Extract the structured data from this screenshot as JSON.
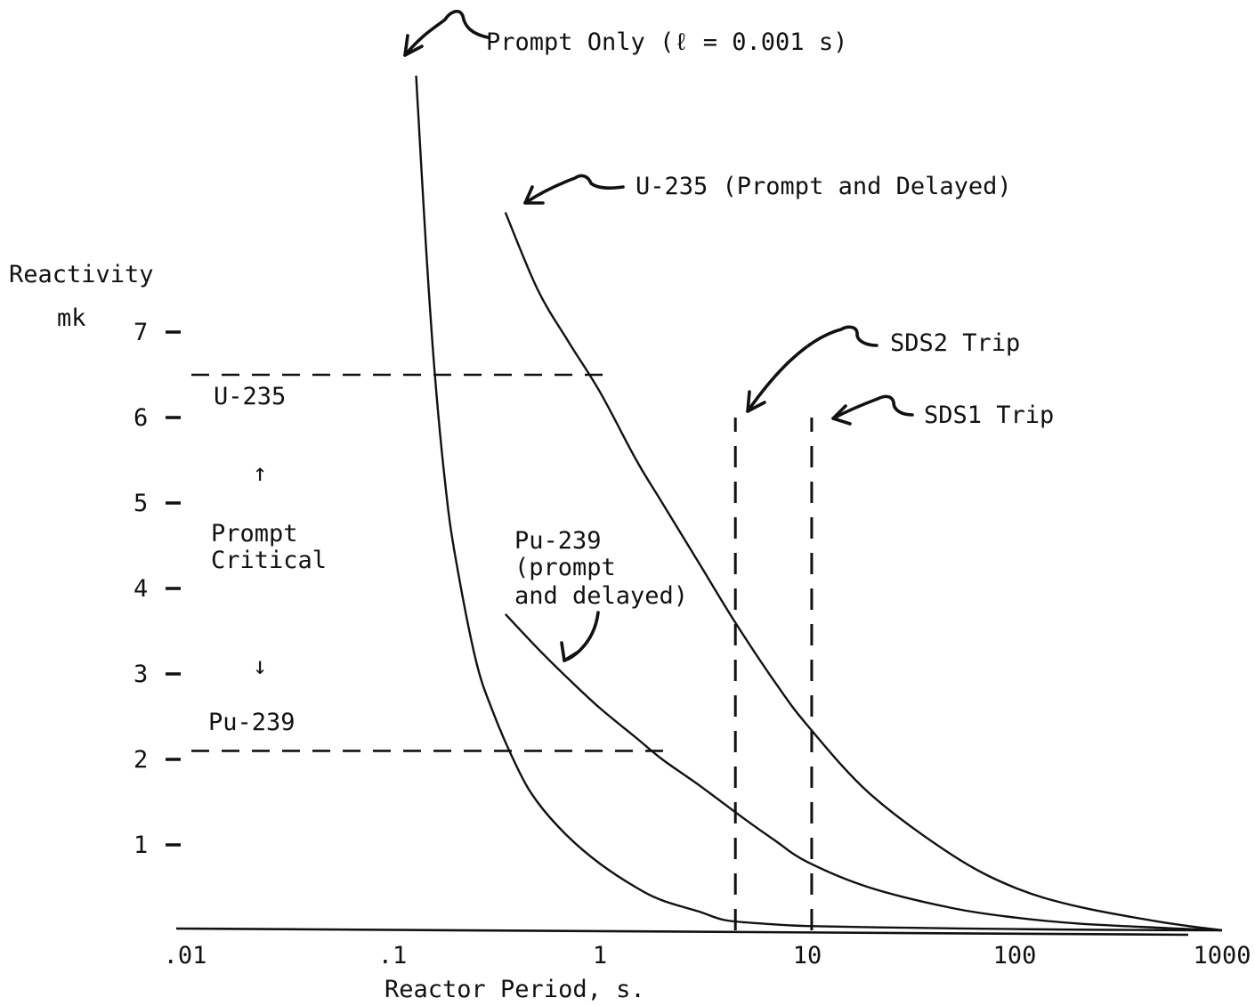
{
  "chart_data": {
    "type": "line",
    "title": "",
    "xlabel": "Reactor Period, s.",
    "ylabel": "Reactivity",
    "yunit": "mk",
    "xscale": "log",
    "xlim": [
      0.01,
      1000
    ],
    "ylim": [
      0,
      7.5
    ],
    "x_ticks": [
      {
        "value": 0.01,
        "label": ".01"
      },
      {
        "value": 0.1,
        "label": ".1"
      },
      {
        "value": 1,
        "label": "1"
      },
      {
        "value": 10,
        "label": "10"
      },
      {
        "value": 100,
        "label": "100"
      },
      {
        "value": 1000,
        "label": "1000"
      }
    ],
    "y_ticks": [
      {
        "value": 1,
        "label": "1"
      },
      {
        "value": 2,
        "label": "2"
      },
      {
        "value": 3,
        "label": "3"
      },
      {
        "value": 4,
        "label": "4"
      },
      {
        "value": 5,
        "label": "5"
      },
      {
        "value": 6,
        "label": "6"
      },
      {
        "value": 7,
        "label": "7"
      }
    ],
    "grid": false,
    "series": [
      {
        "name": "Prompt Only (ℓ = 0.001 s)",
        "x": [
          0.13,
          0.145,
          0.16,
          0.18,
          0.2,
          0.25,
          0.3,
          0.4,
          0.5,
          0.7,
          1,
          1.5,
          2,
          3,
          4,
          6,
          10,
          30,
          100,
          300,
          1000
        ],
        "y": [
          10,
          8.0,
          6.5,
          5.2,
          4.4,
          3.2,
          2.6,
          1.9,
          1.5,
          1.1,
          0.78,
          0.5,
          0.35,
          0.22,
          0.12,
          0.08,
          0.05,
          0.03,
          0.015,
          0.005,
          0.0
        ]
      },
      {
        "name": "U-235 (Prompt and Delayed)",
        "x": [
          0.35,
          0.5,
          0.7,
          1.0,
          1.5,
          2,
          3,
          4.5,
          7,
          10,
          20,
          50,
          100,
          200,
          500,
          1000
        ],
        "y": [
          8.4,
          7.5,
          6.9,
          6.3,
          5.5,
          5.0,
          4.3,
          3.6,
          2.9,
          2.4,
          1.6,
          0.88,
          0.5,
          0.28,
          0.1,
          0.0
        ]
      },
      {
        "name": "Pu-239 (prompt and delayed)",
        "x": [
          0.35,
          0.5,
          0.7,
          1.0,
          1.5,
          2,
          3,
          5,
          7,
          10,
          20,
          50,
          100,
          200,
          500,
          1000
        ],
        "y": [
          3.7,
          3.3,
          2.95,
          2.6,
          2.25,
          2.0,
          1.7,
          1.3,
          1.05,
          0.8,
          0.5,
          0.26,
          0.15,
          0.08,
          0.03,
          0.0
        ]
      }
    ],
    "reference_lines": [
      {
        "label": "U-235",
        "orientation": "horizontal",
        "y": 6.5,
        "x_range": [
          0.01,
          1.1
        ]
      },
      {
        "label": "Pu-239",
        "orientation": "horizontal",
        "y": 2.1,
        "x_range": [
          0.01,
          2.2
        ]
      },
      {
        "label": "SDS2 Trip",
        "orientation": "vertical",
        "x": 4.5,
        "y_range": [
          0,
          6.0
        ]
      },
      {
        "label": "SDS1 Trip",
        "orientation": "vertical",
        "x": 10.5,
        "y_range": [
          0,
          6.0
        ]
      }
    ],
    "annotations": {
      "prompt_critical": "Prompt Critical",
      "arrow_up": "↑",
      "arrow_down": "↓",
      "pu239_lines": [
        "Pu-239",
        "(prompt",
        "and delayed)"
      ]
    }
  }
}
